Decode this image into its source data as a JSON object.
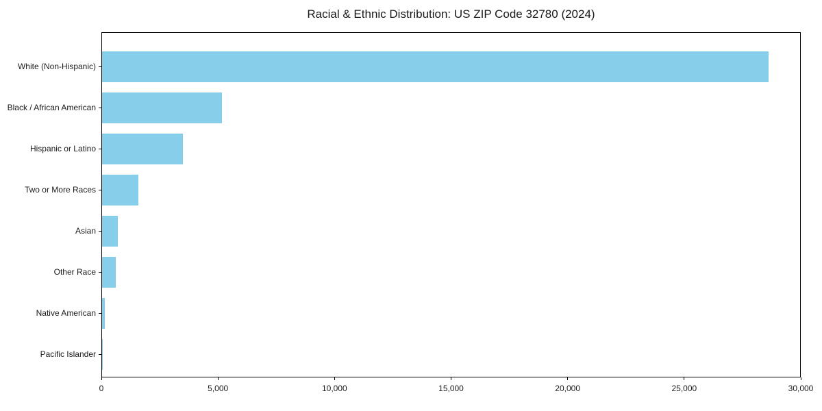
{
  "chart_data": {
    "type": "bar",
    "orientation": "horizontal",
    "title": "Racial & Ethnic Distribution: US ZIP Code 32780 (2024)",
    "categories": [
      "White (Non-Hispanic)",
      "Black / African American",
      "Hispanic or Latino",
      "Two or More Races",
      "Asian",
      "Other Race",
      "Native American",
      "Pacific Islander"
    ],
    "values": [
      28590,
      5150,
      3470,
      1560,
      670,
      580,
      125,
      25
    ],
    "xlabel": "",
    "ylabel": "",
    "xlim": [
      0,
      30000
    ],
    "xticks": [
      {
        "value": 0,
        "label": "0"
      },
      {
        "value": 5000,
        "label": "5,000"
      },
      {
        "value": 10000,
        "label": "10,000"
      },
      {
        "value": 15000,
        "label": "15,000"
      },
      {
        "value": 20000,
        "label": "20,000"
      },
      {
        "value": 25000,
        "label": "25,000"
      },
      {
        "value": 30000,
        "label": "30,000"
      }
    ],
    "grid": false,
    "legend_position": "none",
    "bar_color": "#87ceeb"
  },
  "colors": {
    "background": "#ffffff",
    "axis": "#000000",
    "text": "#1a1a1a"
  }
}
